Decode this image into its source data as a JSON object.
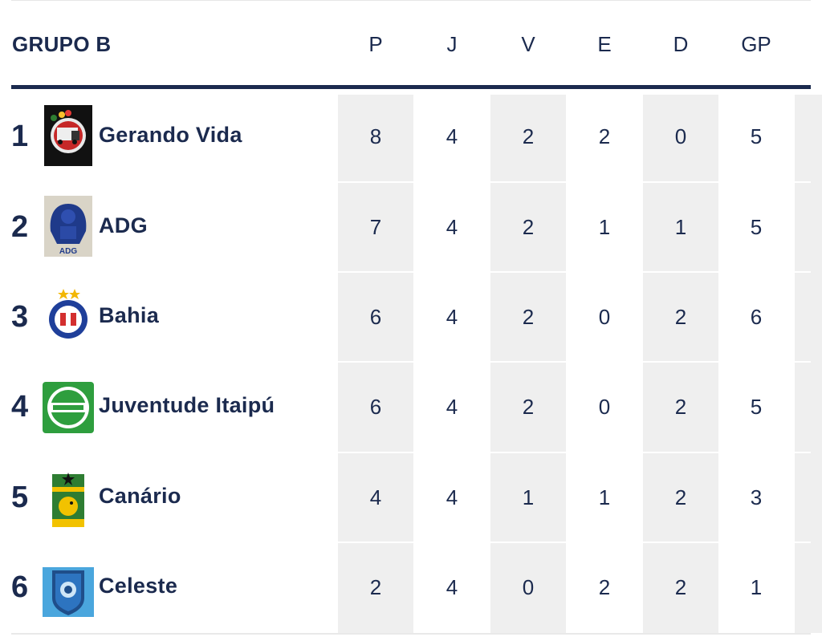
{
  "table": {
    "group_title": "GRUPO B",
    "columns": [
      "P",
      "J",
      "V",
      "E",
      "D",
      "GP"
    ],
    "rows": [
      {
        "rank": "1",
        "team": "Gerando Vida",
        "crest": "gerando-vida-crest",
        "stats": [
          "8",
          "4",
          "2",
          "2",
          "0",
          "5"
        ]
      },
      {
        "rank": "2",
        "team": "ADG",
        "crest": "adg-crest",
        "stats": [
          "7",
          "4",
          "2",
          "1",
          "1",
          "5"
        ]
      },
      {
        "rank": "3",
        "team": "Bahia",
        "crest": "bahia-crest",
        "stats": [
          "6",
          "4",
          "2",
          "0",
          "2",
          "6"
        ]
      },
      {
        "rank": "4",
        "team": "Juventude Itaipú",
        "crest": "juventude-itaipu-crest",
        "stats": [
          "6",
          "4",
          "2",
          "0",
          "2",
          "5"
        ]
      },
      {
        "rank": "5",
        "team": "Canário",
        "crest": "canario-crest",
        "stats": [
          "4",
          "4",
          "1",
          "1",
          "2",
          "3"
        ]
      },
      {
        "rank": "6",
        "team": "Celeste",
        "crest": "celeste-crest",
        "stats": [
          "2",
          "4",
          "0",
          "2",
          "2",
          "1"
        ]
      }
    ]
  },
  "colors": {
    "navy": "#1b2a4e",
    "stripe": "#efefef"
  }
}
